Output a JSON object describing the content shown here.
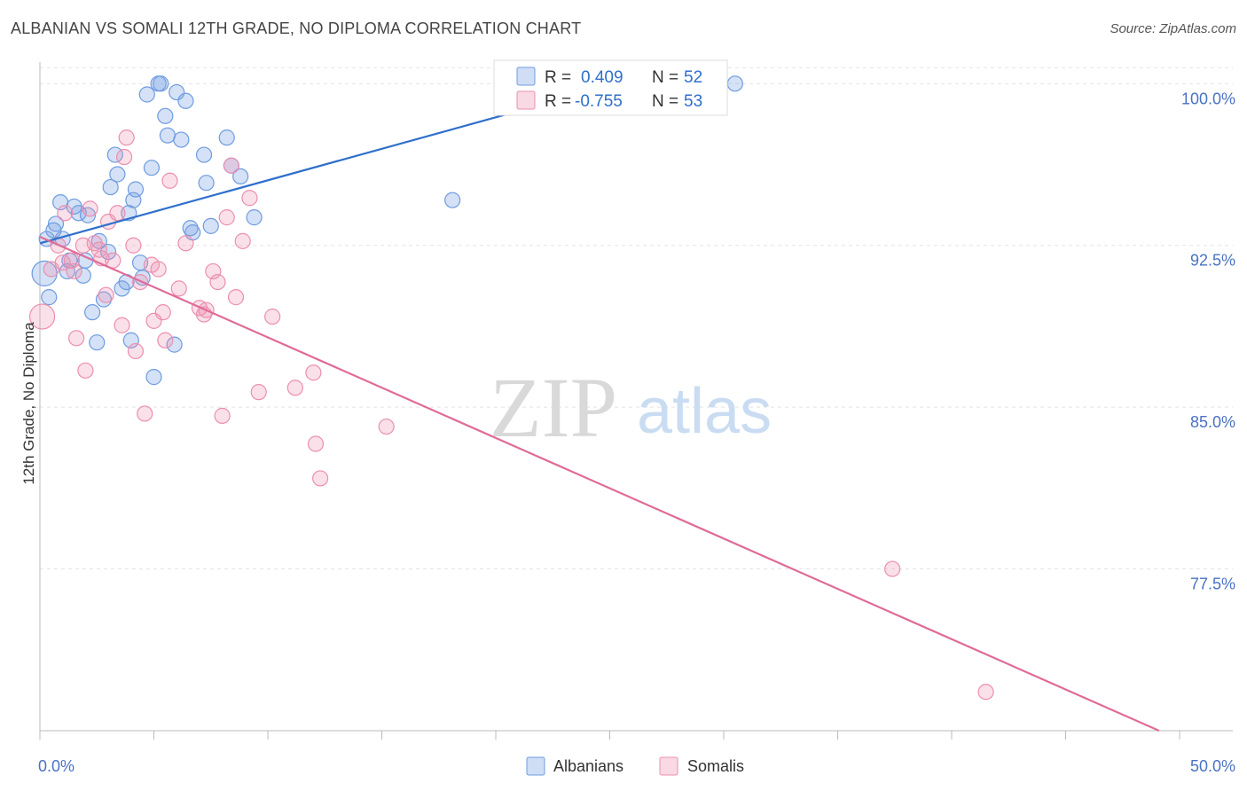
{
  "title": "ALBANIAN VS SOMALI 12TH GRADE, NO DIPLOMA CORRELATION CHART",
  "source": "Source: ZipAtlas.com",
  "watermark": {
    "zip": "ZIP",
    "atlas": "atlas"
  },
  "legend_top": {
    "rows": [
      {
        "r_label": "R =",
        "r_value": "0.409",
        "n_label": "N =",
        "n_value": "52",
        "color": "#6f9ce0"
      },
      {
        "r_label": "R =",
        "r_value": "-0.755",
        "n_label": "N =",
        "n_value": "53",
        "color": "#ec8faf"
      }
    ]
  },
  "legend_bottom": {
    "items": [
      {
        "label": "Albanians",
        "color": "#6f9ce0"
      },
      {
        "label": "Somalis",
        "color": "#ec8faf"
      }
    ]
  },
  "chart_data": {
    "type": "scatter",
    "title": "ALBANIAN VS SOMALI 12TH GRADE, NO DIPLOMA CORRELATION CHART",
    "xlabel": "",
    "ylabel": "12th Grade, No Diploma",
    "xlim": [
      0,
      50
    ],
    "ylim": [
      70.0,
      101.0
    ],
    "x_tick_labels": [
      "0.0%",
      "50.0%"
    ],
    "y_ticks": [
      77.5,
      85.0,
      92.5,
      100.0
    ],
    "y_tick_labels": [
      "77.5%",
      "85.0%",
      "92.5%",
      "100.0%"
    ],
    "grid": true,
    "legend_position": "top-center",
    "series": [
      {
        "name": "Albanians",
        "color": "#6f9ce0",
        "trend": {
          "x": [
            0.0,
            25.0
          ],
          "y": [
            92.6,
            99.9
          ]
        },
        "points": [
          [
            0.2,
            91.2
          ],
          [
            0.4,
            90.1
          ],
          [
            0.3,
            92.8
          ],
          [
            0.6,
            93.2
          ],
          [
            0.7,
            93.5
          ],
          [
            0.9,
            94.5
          ],
          [
            1.0,
            92.8
          ],
          [
            1.2,
            91.3
          ],
          [
            1.3,
            91.8
          ],
          [
            1.5,
            94.3
          ],
          [
            1.7,
            94.0
          ],
          [
            1.9,
            91.1
          ],
          [
            2.0,
            91.8
          ],
          [
            2.1,
            93.9
          ],
          [
            2.3,
            89.4
          ],
          [
            2.5,
            88.0
          ],
          [
            2.6,
            92.7
          ],
          [
            2.8,
            90.0
          ],
          [
            3.0,
            92.2
          ],
          [
            3.1,
            95.2
          ],
          [
            3.3,
            96.7
          ],
          [
            3.4,
            95.8
          ],
          [
            3.6,
            90.5
          ],
          [
            3.8,
            90.8
          ],
          [
            3.9,
            94.0
          ],
          [
            4.0,
            88.1
          ],
          [
            4.1,
            94.6
          ],
          [
            4.2,
            95.1
          ],
          [
            4.4,
            91.7
          ],
          [
            4.5,
            91.0
          ],
          [
            4.7,
            99.5
          ],
          [
            4.9,
            96.1
          ],
          [
            5.0,
            86.4
          ],
          [
            5.2,
            100.0
          ],
          [
            5.3,
            100.0
          ],
          [
            5.5,
            98.5
          ],
          [
            5.6,
            97.6
          ],
          [
            5.9,
            87.9
          ],
          [
            6.0,
            99.6
          ],
          [
            6.2,
            97.4
          ],
          [
            6.4,
            99.2
          ],
          [
            6.6,
            93.3
          ],
          [
            6.7,
            93.1
          ],
          [
            7.2,
            96.7
          ],
          [
            7.3,
            95.4
          ],
          [
            7.5,
            93.4
          ],
          [
            8.2,
            97.5
          ],
          [
            8.4,
            96.2
          ],
          [
            8.8,
            95.7
          ],
          [
            9.4,
            93.8
          ],
          [
            18.1,
            94.6
          ],
          [
            30.5,
            100.0
          ]
        ]
      },
      {
        "name": "Somalis",
        "color": "#ec8faf",
        "trend": {
          "x": [
            0.0,
            49.1
          ],
          "y": [
            92.9,
            70.0
          ]
        },
        "points": [
          [
            0.1,
            89.2
          ],
          [
            0.5,
            91.4
          ],
          [
            0.8,
            92.5
          ],
          [
            1.0,
            91.7
          ],
          [
            1.1,
            94.0
          ],
          [
            1.4,
            91.8
          ],
          [
            1.6,
            88.2
          ],
          [
            1.9,
            92.5
          ],
          [
            2.0,
            86.7
          ],
          [
            2.2,
            94.2
          ],
          [
            2.4,
            92.6
          ],
          [
            2.6,
            92.3
          ],
          [
            2.7,
            91.9
          ],
          [
            2.9,
            90.2
          ],
          [
            3.0,
            93.6
          ],
          [
            3.2,
            91.8
          ],
          [
            3.4,
            94.0
          ],
          [
            3.6,
            88.8
          ],
          [
            3.7,
            96.6
          ],
          [
            3.8,
            97.5
          ],
          [
            4.1,
            92.5
          ],
          [
            4.2,
            87.6
          ],
          [
            4.4,
            90.8
          ],
          [
            4.6,
            84.7
          ],
          [
            4.9,
            91.6
          ],
          [
            5.0,
            89.0
          ],
          [
            5.2,
            91.4
          ],
          [
            5.4,
            89.4
          ],
          [
            5.5,
            88.1
          ],
          [
            5.7,
            95.5
          ],
          [
            6.1,
            90.5
          ],
          [
            6.4,
            92.6
          ],
          [
            7.0,
            89.6
          ],
          [
            7.2,
            89.3
          ],
          [
            7.3,
            89.5
          ],
          [
            7.6,
            91.3
          ],
          [
            7.8,
            90.8
          ],
          [
            8.0,
            84.6
          ],
          [
            8.2,
            93.8
          ],
          [
            8.4,
            96.2
          ],
          [
            8.6,
            90.1
          ],
          [
            8.9,
            92.7
          ],
          [
            9.2,
            94.7
          ],
          [
            9.6,
            85.7
          ],
          [
            10.2,
            89.2
          ],
          [
            11.2,
            85.9
          ],
          [
            12.0,
            86.6
          ],
          [
            12.1,
            83.3
          ],
          [
            12.3,
            81.7
          ],
          [
            15.2,
            84.1
          ],
          [
            37.4,
            77.5
          ],
          [
            41.5,
            71.8
          ],
          [
            1.5,
            91.3
          ]
        ]
      }
    ]
  }
}
